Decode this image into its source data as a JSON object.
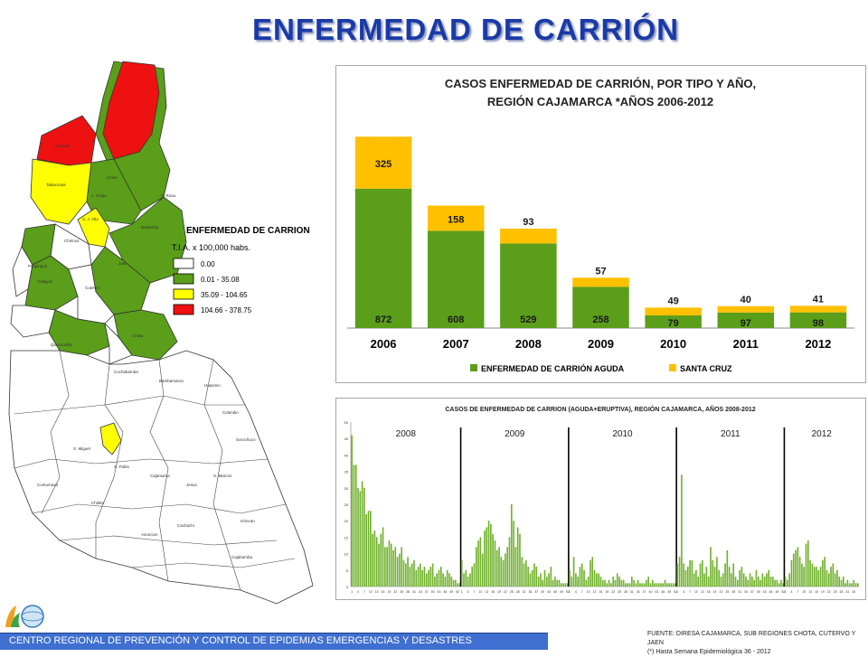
{
  "page_title": "ENFERMEDAD DE CARRIÓN",
  "map": {
    "legend_title": "ENFERMEDAD DE CARRION",
    "legend_subtitle": "T.I.A. x 100,000 habs.",
    "legend_items": [
      {
        "label": "0.00",
        "color": "#ffffff"
      },
      {
        "label": "0.01 - 35.08",
        "color": "#5a9e1a"
      },
      {
        "label": "35.09 - 104.65",
        "color": "#ffff00"
      },
      {
        "label": "104.66 - 378.75",
        "color": "#ee1111"
      }
    ],
    "district_labels": [
      "S. Rosa",
      "Chontal",
      "Tabaconas",
      "L. Chipe",
      "Chirin",
      "S. J. Alto",
      "Bellavista",
      "Chirinos",
      "Jaen",
      "Pimpingos",
      "Callayuc",
      "Cutervo",
      "Querocotillo",
      "Chota",
      "Cochabamba",
      "Bambamarca",
      "Celendin",
      "Cajamarca",
      "Contumaza",
      "S. Miguel",
      "S. Pablo",
      "Cachachi",
      "Cajabamba",
      "S. Marcos",
      "Ichocan",
      "Jesus",
      "Sorochuco",
      "Huasmin",
      "Chilete",
      "Asuncion"
    ]
  },
  "chart_data": [
    {
      "type": "bar",
      "stacked": true,
      "title": "CASOS ENFERMEDAD DE CARRIÓN, POR TIPO Y AÑO,",
      "subtitle": "REGIÓN CAJAMARCA *AÑOS 2006-2012",
      "categories": [
        "2006",
        "2007",
        "2008",
        "2009",
        "2010",
        "2011",
        "2012"
      ],
      "series": [
        {
          "name": "ENFERMEDAD DE CARRIÓN AGUDA",
          "color": "#5a9e1a",
          "values": [
            872,
            608,
            529,
            258,
            79,
            97,
            98
          ]
        },
        {
          "name": "SANTA CRUZ",
          "color": "#ffc000",
          "values": [
            325,
            158,
            93,
            57,
            49,
            40,
            41
          ]
        }
      ],
      "ylim": [
        0,
        1300
      ],
      "legend": "bottom"
    },
    {
      "type": "bar",
      "title": "CASOS DE ENFERMEDAD DE CARRION (AGUDA+ERUPTIVA), REGIÓN CAJAMARCA, AÑOS 2008-2012",
      "ylim": [
        0,
        50
      ],
      "yticks": [
        0,
        5,
        10,
        15,
        20,
        25,
        30,
        35,
        40,
        45,
        50
      ],
      "color": "#6fb02a",
      "year_labels": [
        "2008",
        "2009",
        "2010",
        "2011",
        "2012"
      ],
      "weeks_per_year": [
        53,
        52,
        52,
        52,
        36
      ],
      "xtick_labels": [
        "1",
        "4",
        "7",
        "10",
        "13",
        "16",
        "19",
        "22",
        "25",
        "28",
        "31",
        "34",
        "37",
        "40",
        "43",
        "46",
        "49",
        "52"
      ],
      "values": [
        [
          46,
          37,
          37,
          30,
          29,
          32,
          30,
          22,
          23,
          23,
          16,
          17,
          15,
          13,
          16,
          18,
          12,
          12,
          14,
          13,
          11,
          12,
          9,
          10,
          12,
          8,
          7,
          9,
          6,
          7,
          8,
          5,
          6,
          7,
          5,
          6,
          4,
          5,
          6,
          7,
          3,
          4,
          5,
          6,
          4,
          3,
          5,
          4,
          3,
          2,
          2,
          1,
          1
        ],
        [
          8,
          4,
          5,
          3,
          4,
          6,
          7,
          12,
          14,
          15,
          10,
          17,
          18,
          20,
          19,
          16,
          14,
          11,
          12,
          9,
          8,
          10,
          12,
          15,
          25,
          20,
          12,
          18,
          16,
          9,
          7,
          8,
          6,
          4,
          5,
          7,
          6,
          3,
          4,
          2,
          5,
          3,
          4,
          6,
          2,
          3,
          2,
          2,
          1,
          1,
          1,
          1
        ],
        [
          5,
          3,
          9,
          4,
          3,
          6,
          7,
          5,
          2,
          3,
          8,
          9,
          5,
          4,
          4,
          3,
          2,
          2,
          1,
          2,
          1,
          3,
          2,
          4,
          3,
          2,
          2,
          1,
          1,
          1,
          3,
          2,
          1,
          2,
          1,
          1,
          1,
          2,
          3,
          1,
          2,
          1,
          1,
          1,
          1,
          1,
          2,
          1,
          1,
          1,
          1,
          1
        ],
        [
          7,
          9,
          34,
          7,
          5,
          6,
          8,
          8,
          4,
          5,
          3,
          7,
          8,
          4,
          6,
          3,
          12,
          8,
          6,
          9,
          5,
          3,
          4,
          7,
          11,
          6,
          4,
          7,
          3,
          2,
          5,
          6,
          4,
          3,
          2,
          4,
          3,
          2,
          5,
          3,
          2,
          4,
          3,
          4,
          5,
          3,
          3,
          2,
          2,
          1,
          2,
          1
        ],
        [
          3,
          2,
          4,
          8,
          10,
          11,
          12,
          9,
          7,
          6,
          13,
          14,
          8,
          7,
          6,
          6,
          5,
          6,
          8,
          9,
          5,
          4,
          6,
          7,
          4,
          5,
          3,
          2,
          3,
          1,
          2,
          1,
          1,
          2,
          1,
          1
        ]
      ]
    }
  ],
  "footer": {
    "institution": "CENTRO REGIONAL DE PREVENCIÓN Y CONTROL DE EPIDEMIAS EMERGENCIAS Y DESASTRES",
    "source": "FUENTE: DIRESA CAJAMARCA, SUB REGIONES CHOTA, CUTERVO Y JAEN",
    "note": "(*) Hasta Semana Epidemiológica 36 - 2012"
  }
}
